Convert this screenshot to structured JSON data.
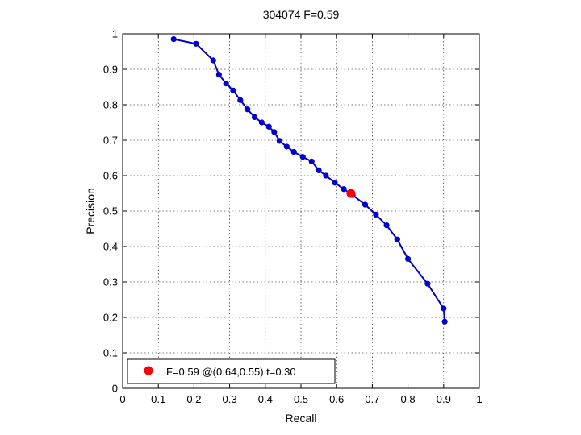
{
  "chart_data": {
    "type": "line",
    "title": "304074 F=0.59",
    "xlabel": "Recall",
    "ylabel": "Precision",
    "xlim": [
      0,
      1
    ],
    "ylim": [
      0,
      1
    ],
    "grid": true,
    "xticks": [
      "0",
      "0.1",
      "0.2",
      "0.3",
      "0.4",
      "0.5",
      "0.6",
      "0.7",
      "0.8",
      "0.9",
      "1"
    ],
    "yticks": [
      "0",
      "0.1",
      "0.2",
      "0.3",
      "0.4",
      "0.5",
      "0.6",
      "0.7",
      "0.8",
      "0.9",
      "1"
    ],
    "series_color": "#0000cc",
    "highlight_color": "#ff0000",
    "series": [
      {
        "x": [
          0.143,
          0.206,
          0.254,
          0.27,
          0.29,
          0.31,
          0.33,
          0.35,
          0.37,
          0.39,
          0.41,
          0.425,
          0.44,
          0.46,
          0.48,
          0.505,
          0.53,
          0.55,
          0.57,
          0.595,
          0.62,
          0.645,
          0.68,
          0.71,
          0.74,
          0.77,
          0.8,
          0.855,
          0.9,
          0.903
        ],
        "y": [
          0.985,
          0.972,
          0.925,
          0.885,
          0.86,
          0.84,
          0.813,
          0.787,
          0.765,
          0.75,
          0.738,
          0.723,
          0.698,
          0.682,
          0.667,
          0.653,
          0.64,
          0.615,
          0.6,
          0.58,
          0.562,
          0.545,
          0.518,
          0.49,
          0.46,
          0.42,
          0.365,
          0.295,
          0.225,
          0.188
        ]
      }
    ],
    "highlight": {
      "x": 0.64,
      "y": 0.55
    },
    "legend": {
      "location": "bottom-left",
      "label": "F=0.59 @(0.64,0.55) t=0.30"
    }
  }
}
